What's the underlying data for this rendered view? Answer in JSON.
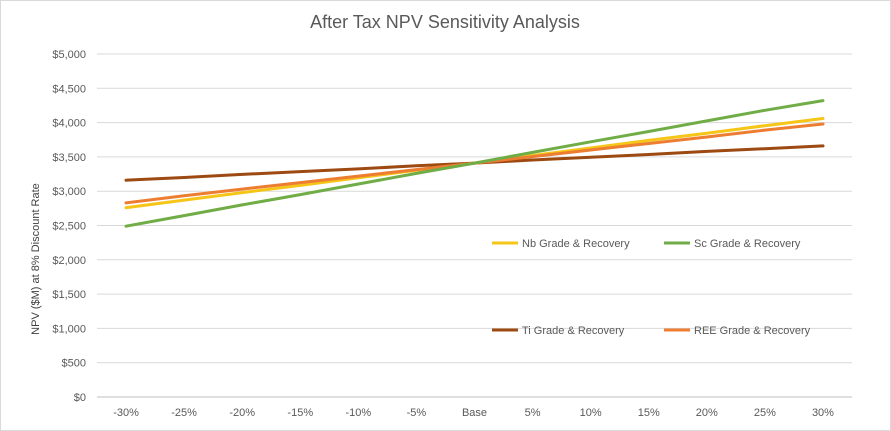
{
  "chart_data": {
    "type": "line",
    "title": "After Tax NPV Sensitivity Analysis",
    "ylabel": "NPV  ($M) at 8% Discount Rate",
    "xlabel": "",
    "categories": [
      "-30%",
      "-25%",
      "-20%",
      "-15%",
      "-10%",
      "-5%",
      "Base",
      "5%",
      "10%",
      "15%",
      "20%",
      "25%",
      "30%"
    ],
    "ylim": [
      0,
      5000
    ],
    "ytick_values": [
      0,
      500,
      1000,
      1500,
      2000,
      2500,
      3000,
      3500,
      4000,
      4500,
      5000
    ],
    "ytick_labels": [
      "$0",
      "$500",
      "$1,000",
      "$1,500",
      "$2,000",
      "$2,500",
      "$3,000",
      "$3,500",
      "$4,000",
      "$4,500",
      "$5,000"
    ],
    "grid": true,
    "series": [
      {
        "name": "Nb Grade & Recovery",
        "color": "#f5c518",
        "values": [
          2760,
          2870,
          2980,
          3085,
          3195,
          3305,
          3410,
          3520,
          3630,
          3740,
          3845,
          3955,
          4060
        ]
      },
      {
        "name": "Sc Grade & Recovery",
        "color": "#70ad47",
        "values": [
          2490,
          2645,
          2800,
          2950,
          3105,
          3260,
          3410,
          3565,
          3720,
          3870,
          4025,
          4180,
          4320
        ]
      },
      {
        "name": "Ti Grade & Recovery",
        "color": "#9c4a12",
        "values": [
          3160,
          3200,
          3245,
          3285,
          3325,
          3370,
          3410,
          3455,
          3495,
          3535,
          3580,
          3620,
          3660
        ]
      },
      {
        "name": "REE Grade & Recovery",
        "color": "#ed7d31",
        "values": [
          2830,
          2935,
          3030,
          3125,
          3220,
          3315,
          3410,
          3505,
          3600,
          3695,
          3790,
          3890,
          3980
        ]
      }
    ]
  }
}
